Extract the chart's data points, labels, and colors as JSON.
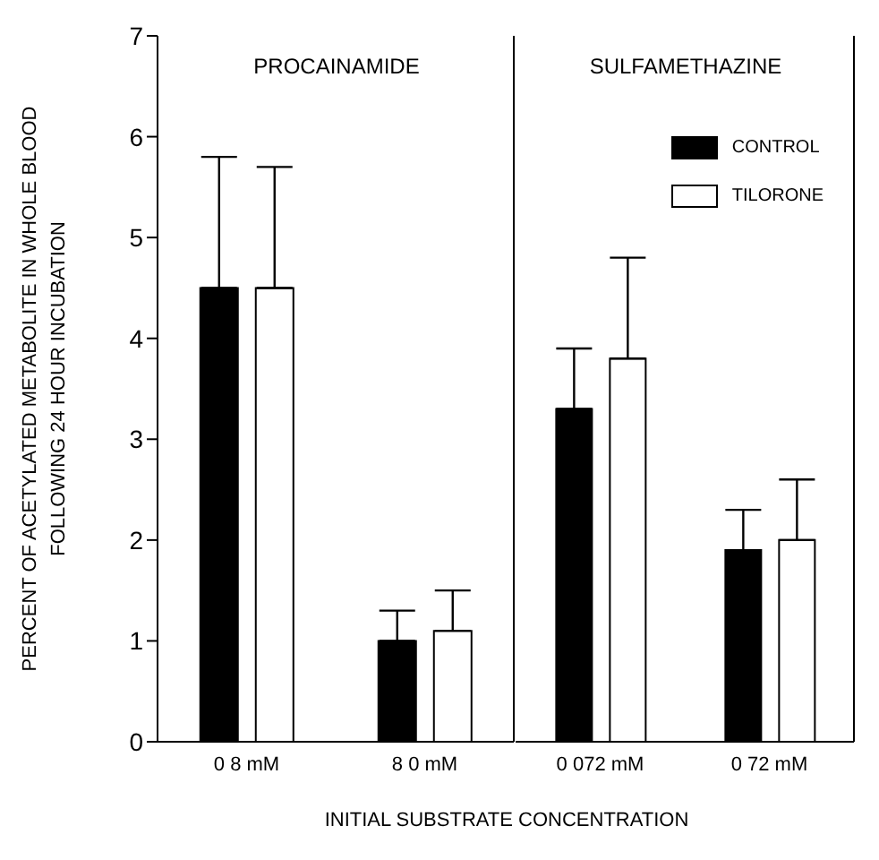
{
  "chart_data": [
    {
      "type": "bar",
      "title": "PROCAINAMIDE",
      "ylabel": "PERCENT OF ACETYLATED METABOLITE IN WHOLE BLOOD\nFOLLOWING 24 HOUR INCUBATION",
      "xlabel": "INITIAL SUBSTRATE CONCENTRATION",
      "categories": [
        "0 8 mM",
        "8 0 mM"
      ],
      "ylim": [
        0,
        7
      ],
      "yticks": [
        0,
        1,
        2,
        3,
        4,
        5,
        6,
        7
      ],
      "legend": false,
      "series": [
        {
          "color": "#000000",
          "values": [
            4.5,
            1.0
          ],
          "errors": [
            [
              4.5,
              5.8
            ],
            [
              1.0,
              1.3
            ]
          ]
        },
        {
          "color": "#ffffff",
          "values": [
            4.5,
            1.1
          ],
          "errors": [
            [
              4.5,
              5.7
            ],
            [
              1.1,
              1.5
            ]
          ]
        }
      ]
    },
    {
      "type": "bar",
      "title": "SULFAMETHAZINE",
      "categories": [
        "0 072 mM",
        "0 72 mM"
      ],
      "ylim": [
        0,
        7
      ],
      "yticks": [
        0,
        1,
        2,
        3,
        4,
        5,
        6,
        7
      ],
      "tick_labels": "x",
      "legend": "top right",
      "series": [
        {
          "name": "CONTROL",
          "color": "#000000",
          "values": [
            3.3,
            1.9
          ],
          "errors": [
            [
              3.3,
              3.9
            ],
            [
              1.9,
              2.3
            ]
          ]
        },
        {
          "name": "TILORONE",
          "color": "#ffffff",
          "values": [
            3.8,
            2.0
          ],
          "errors": [
            [
              3.8,
              4.8
            ],
            [
              2.0,
              2.6
            ]
          ]
        }
      ]
    }
  ]
}
